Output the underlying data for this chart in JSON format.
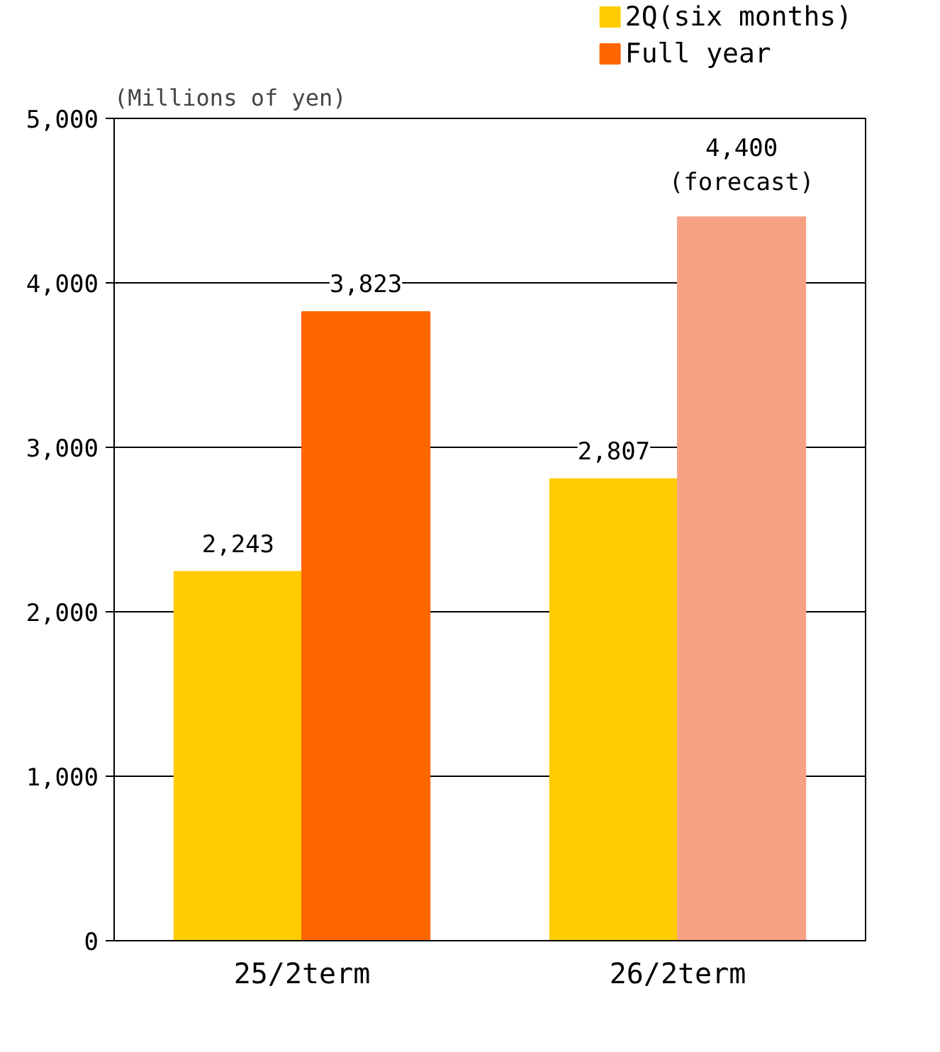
{
  "chart_data": {
    "type": "bar",
    "ylabel": "(Millions of yen)",
    "categories": [
      "25/2term",
      "26/2term"
    ],
    "series": [
      {
        "name": "2Q(six months)",
        "color": "#ffcc00",
        "values": [
          2243,
          2807
        ],
        "value_labels": [
          "2,243",
          "2,807"
        ]
      },
      {
        "name": "Full year",
        "color": "#ff6600",
        "colors": [
          "#ff6600",
          "#f7a184"
        ],
        "values": [
          3823,
          4400
        ],
        "value_labels": [
          "3,823",
          "4,400\n(forecast)"
        ]
      }
    ],
    "ylim": [
      0,
      5000
    ],
    "yticks": [
      {
        "value": 0,
        "label": "0"
      },
      {
        "value": 1000,
        "label": "1,000"
      },
      {
        "value": 2000,
        "label": "2,000"
      },
      {
        "value": 3000,
        "label": "3,000"
      },
      {
        "value": 4000,
        "label": "4,000"
      },
      {
        "value": 5000,
        "label": "5,000"
      }
    ],
    "grid": "y",
    "legend": "top right"
  }
}
